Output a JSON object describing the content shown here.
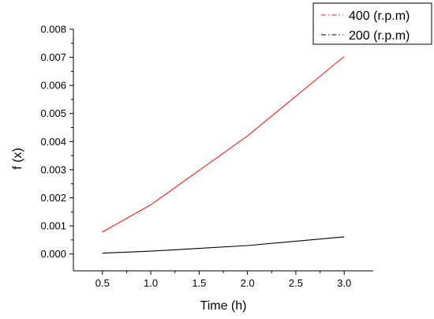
{
  "chart_data": {
    "type": "line",
    "title": "",
    "xlabel": "Time (h)",
    "ylabel": "f (x)",
    "xlim": [
      0.2,
      3.3
    ],
    "ylim": [
      -0.0006,
      0.008
    ],
    "xticks": [
      0.5,
      1.0,
      1.5,
      2.0,
      2.5,
      3.0
    ],
    "xtick_labels": [
      "0.5",
      "1.0",
      "1.5",
      "2.0",
      "2.5",
      "3.0"
    ],
    "yticks": [
      0.0,
      0.001,
      0.002,
      0.003,
      0.004,
      0.005,
      0.006,
      0.007,
      0.008
    ],
    "ytick_labels": [
      "0.000",
      "0.001",
      "0.002",
      "0.003",
      "0.004",
      "0.005",
      "0.006",
      "0.007",
      "0.008"
    ],
    "grid": false,
    "legend_position": "top-right",
    "series": [
      {
        "name": "400  (r.p.m)",
        "color": "#e8201c",
        "x": [
          0.5,
          1.0,
          2.0,
          3.0
        ],
        "y": [
          0.00078,
          0.00175,
          0.0042,
          0.00703
        ]
      },
      {
        "name": "200 (r.p.m)",
        "color": "#000000",
        "x": [
          0.5,
          1.0,
          2.0,
          3.0
        ],
        "y": [
          3e-05,
          0.0001,
          0.0003,
          0.00061
        ]
      }
    ]
  }
}
